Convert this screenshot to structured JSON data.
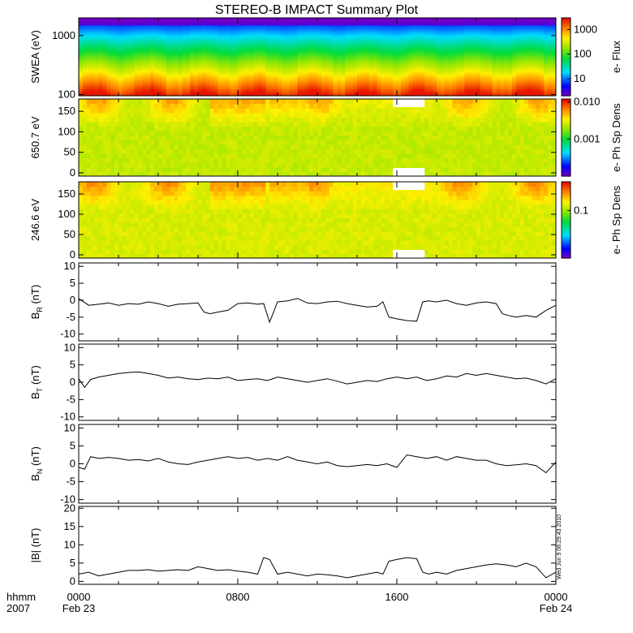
{
  "title": "STEREO-B IMPACT Summary Plot",
  "footer": {
    "time_label": "hhmm",
    "year_label": "2007",
    "x_ticks": [
      "0000",
      "0800",
      "1600",
      "0000"
    ],
    "x_dates": [
      "Feb 23",
      "",
      "",
      "Feb 24"
    ],
    "timestamp": "Wed Jun 9 08:29:43 2010"
  },
  "chart_data": [
    {
      "type": "heatmap",
      "id": "swea",
      "ylabel": "SWEA (eV)",
      "ylog": true,
      "ylim": [
        95,
        2000
      ],
      "yticks": [
        100,
        1000
      ],
      "ytick_labels": [
        "100",
        "1000"
      ],
      "colorbar": {
        "label": "e- Flux",
        "log": true,
        "range": [
          2,
          3000
        ],
        "ticks": [
          10,
          100,
          1000
        ],
        "tick_labels": [
          "10",
          "100",
          "1000"
        ]
      },
      "description_rows": [
        {
          "energy_eV": 1800,
          "value": 8
        },
        {
          "energy_eV": 1500,
          "value": 25
        },
        {
          "energy_eV": 1000,
          "value": 70
        },
        {
          "energy_eV": 600,
          "value": 150
        },
        {
          "energy_eV": 400,
          "value": 300
        },
        {
          "energy_eV": 250,
          "value": 700
        },
        {
          "energy_eV": 150,
          "value": 1500
        },
        {
          "energy_eV": 110,
          "value": 2200
        }
      ]
    },
    {
      "type": "heatmap",
      "id": "pad650",
      "ylabel": "650.7 eV",
      "ylim": [
        -8,
        180
      ],
      "yticks": [
        0,
        50,
        100,
        150
      ],
      "ytick_labels": [
        "0",
        "50",
        "100",
        "150"
      ],
      "colorbar": {
        "label": "e- Ph Sp Dens",
        "log": true,
        "range": [
          0.0001,
          0.012
        ],
        "ticks": [
          0.001,
          0.01
        ],
        "tick_labels": [
          "0.001",
          "0.010"
        ]
      },
      "data_gaps_hours": [
        [
          15.8,
          17.4
        ]
      ]
    },
    {
      "type": "heatmap",
      "id": "pad246",
      "ylabel": "246.6 eV",
      "ylim": [
        -8,
        180
      ],
      "yticks": [
        0,
        50,
        100,
        150
      ],
      "ytick_labels": [
        "0",
        "50",
        "100",
        "150"
      ],
      "colorbar": {
        "label": "e- Ph Sp Dens",
        "log": true,
        "range": [
          0.01,
          0.4
        ],
        "ticks": [
          0.1
        ],
        "tick_labels": [
          "0.1"
        ]
      },
      "data_gaps_hours": [
        [
          15.8,
          17.4
        ]
      ]
    },
    {
      "type": "line",
      "id": "br",
      "ylabel_main": "B",
      "ylabel_sub": "R",
      "ylabel_unit": " (nT)",
      "ylim": [
        -12,
        11
      ],
      "yticks": [
        -10,
        -5,
        0,
        5,
        10
      ],
      "ytick_labels": [
        "-10",
        "-5",
        "0",
        "5",
        "10"
      ],
      "x_hours": [
        0,
        0.5,
        1,
        1.5,
        2,
        2.5,
        3,
        3.5,
        4,
        4.5,
        5,
        5.5,
        6,
        6.3,
        6.6,
        7,
        7.5,
        8,
        8.5,
        9,
        9.3,
        9.6,
        10,
        10.5,
        11,
        11.5,
        12,
        12.5,
        13,
        13.5,
        14,
        14.5,
        15,
        15.3,
        15.6,
        16,
        16.5,
        17,
        17.3,
        17.6,
        18,
        18.5,
        19,
        19.5,
        20,
        20.5,
        21,
        21.3,
        21.6,
        22,
        22.5,
        23,
        23.5,
        24
      ],
      "values": [
        0.5,
        -1.5,
        -1.2,
        -0.8,
        -1.5,
        -1.0,
        -1.2,
        -0.5,
        -1.0,
        -1.8,
        -1.2,
        -1.0,
        -0.8,
        -3.5,
        -4.0,
        -3.5,
        -3.0,
        -1.0,
        -0.8,
        -1.2,
        -1.0,
        -6.5,
        -0.5,
        -0.2,
        0.5,
        -0.8,
        -1.0,
        -0.5,
        -0.3,
        -1.0,
        -1.5,
        -2.0,
        -1.8,
        -0.5,
        -5.0,
        -5.5,
        -6.0,
        -6.2,
        -0.5,
        -0.2,
        -0.5,
        0.0,
        -1.0,
        -1.5,
        -0.8,
        -0.5,
        -1.0,
        -4.0,
        -4.5,
        -5.0,
        -4.5,
        -5.0,
        -3.0,
        -1.5
      ]
    },
    {
      "type": "line",
      "id": "bt",
      "ylabel_main": "B",
      "ylabel_sub": "T",
      "ylabel_unit": " (nT)",
      "ylim": [
        -11,
        11
      ],
      "yticks": [
        -10,
        -5,
        0,
        5,
        10
      ],
      "ytick_labels": [
        "-10",
        "-5",
        "0",
        "5",
        "10"
      ],
      "x_hours": [
        0,
        0.3,
        0.6,
        1,
        1.5,
        2,
        2.5,
        3,
        3.5,
        4,
        4.5,
        5,
        5.5,
        6,
        6.5,
        7,
        7.5,
        8,
        8.5,
        9,
        9.5,
        10,
        10.5,
        11,
        11.5,
        12,
        12.5,
        13,
        13.5,
        14,
        14.5,
        15,
        15.5,
        16,
        16.5,
        17,
        17.5,
        18,
        18.5,
        19,
        19.5,
        20,
        20.5,
        21,
        21.5,
        22,
        22.5,
        23,
        23.5,
        24
      ],
      "values": [
        1.0,
        -1.5,
        0.8,
        1.5,
        2.0,
        2.5,
        2.8,
        3.0,
        2.5,
        2.0,
        1.2,
        1.5,
        1.0,
        0.8,
        1.2,
        1.0,
        1.5,
        0.5,
        0.8,
        1.0,
        0.5,
        1.5,
        1.0,
        0.5,
        0.0,
        0.5,
        1.0,
        0.3,
        -0.5,
        0.0,
        0.5,
        0.2,
        1.0,
        1.5,
        1.0,
        1.5,
        0.5,
        1.0,
        1.8,
        1.5,
        2.5,
        2.0,
        2.5,
        2.0,
        1.5,
        1.0,
        1.2,
        0.5,
        -0.5,
        1.0
      ]
    },
    {
      "type": "line",
      "id": "bn",
      "ylabel_main": "B",
      "ylabel_sub": "N",
      "ylabel_unit": " (nT)",
      "ylim": [
        -11,
        11
      ],
      "yticks": [
        -10,
        -5,
        0,
        5,
        10
      ],
      "ytick_labels": [
        "-10",
        "-5",
        "0",
        "5",
        "10"
      ],
      "x_hours": [
        0,
        0.3,
        0.6,
        1,
        1.5,
        2,
        2.5,
        3,
        3.5,
        4,
        4.5,
        5,
        5.5,
        6,
        6.5,
        7,
        7.5,
        8,
        8.5,
        9,
        9.5,
        10,
        10.5,
        11,
        11.5,
        12,
        12.5,
        13,
        13.5,
        14,
        14.5,
        15,
        15.5,
        16,
        16.5,
        17,
        17.5,
        18,
        18.5,
        19,
        19.5,
        20,
        20.5,
        21,
        21.5,
        22,
        22.5,
        23,
        23.5,
        24
      ],
      "values": [
        -1.0,
        -1.5,
        2.0,
        1.5,
        1.8,
        1.5,
        1.0,
        1.2,
        0.8,
        1.5,
        0.5,
        0.0,
        -0.2,
        0.5,
        1.0,
        1.5,
        2.0,
        1.5,
        1.8,
        1.0,
        1.5,
        1.0,
        2.0,
        1.0,
        0.5,
        0.0,
        0.5,
        -0.5,
        -0.8,
        -0.5,
        -0.2,
        -0.5,
        0.0,
        -1.0,
        2.5,
        2.0,
        1.5,
        2.0,
        1.0,
        2.0,
        1.5,
        1.0,
        1.0,
        0.0,
        -0.5,
        -0.3,
        0.0,
        -0.5,
        -2.5,
        0.5
      ]
    },
    {
      "type": "line",
      "id": "bmag",
      "ylabel_main": "|B|",
      "ylabel_sub": "",
      "ylabel_unit": " (nT)",
      "ylim": [
        -0.8,
        20.5
      ],
      "yticks": [
        0,
        5,
        10,
        15,
        20
      ],
      "ytick_labels": [
        "0",
        "5",
        "10",
        "15",
        "20"
      ],
      "x_hours": [
        0,
        0.5,
        1,
        1.5,
        2,
        2.5,
        3,
        3.5,
        4,
        4.5,
        5,
        5.5,
        6,
        6.5,
        7,
        7.5,
        8,
        8.5,
        9,
        9.3,
        9.6,
        10,
        10.5,
        11,
        11.5,
        12,
        12.5,
        13,
        13.5,
        14,
        14.5,
        15,
        15.3,
        15.6,
        16,
        16.5,
        17,
        17.3,
        17.6,
        18,
        18.5,
        19,
        19.5,
        20,
        20.5,
        21,
        21.5,
        22,
        22.5,
        23,
        23.5,
        24
      ],
      "values": [
        2.0,
        2.5,
        1.5,
        2.0,
        2.5,
        3.0,
        3.0,
        3.2,
        2.8,
        3.0,
        3.2,
        3.0,
        4.0,
        3.5,
        3.0,
        3.2,
        2.8,
        2.5,
        2.0,
        6.5,
        6.0,
        2.0,
        2.5,
        2.0,
        1.5,
        2.0,
        1.8,
        1.5,
        1.0,
        1.5,
        2.0,
        2.5,
        2.0,
        5.5,
        6.0,
        6.5,
        6.2,
        2.5,
        2.0,
        2.5,
        2.0,
        3.0,
        3.5,
        4.0,
        4.5,
        4.8,
        4.5,
        4.0,
        5.0,
        4.0,
        1.0,
        2.5
      ]
    }
  ]
}
